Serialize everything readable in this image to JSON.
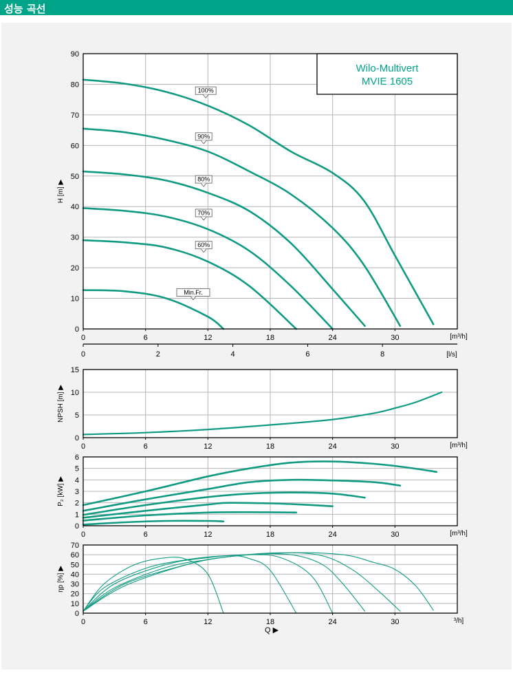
{
  "header": {
    "title": "성능 곡선"
  },
  "colors": {
    "accent": "#00a489",
    "curve": "#109a82",
    "panel_bg": "#f2f2f2",
    "plot_bg": "#ffffff",
    "grid": "#b5b5b5"
  },
  "legend_box": {
    "line1": "Wilo-Multivert",
    "line2": "MVIE 1605"
  },
  "chart_data": [
    {
      "id": "head",
      "type": "line",
      "ylabel": "H [m] ▶",
      "x_unit_label": "[m³/h]",
      "secondary_x_unit_label": "[l/s]",
      "xlim": [
        0,
        36
      ],
      "ylim": [
        0,
        90
      ],
      "x_ticks": [
        0,
        6,
        12,
        18,
        24,
        30
      ],
      "y_ticks": [
        0,
        10,
        20,
        30,
        40,
        50,
        60,
        70,
        80,
        90
      ],
      "secondary_x_ticks": [
        0,
        2,
        4,
        6,
        8
      ],
      "grid": true,
      "series": [
        {
          "name": "100%",
          "label_at": [
            10.8,
            76.0
          ],
          "points": [
            [
              0,
              81.5
            ],
            [
              4,
              80.2
            ],
            [
              8,
              77.5
            ],
            [
              12,
              73
            ],
            [
              16,
              66.5
            ],
            [
              20,
              58
            ],
            [
              24,
              51
            ],
            [
              27,
              42
            ],
            [
              30,
              24
            ],
            [
              33.7,
              1.5
            ]
          ]
        },
        {
          "name": "90%",
          "label_at": [
            10.8,
            61.0
          ],
          "points": [
            [
              0,
              65.5
            ],
            [
              4,
              64.3
            ],
            [
              8,
              61.8
            ],
            [
              12,
              58
            ],
            [
              16,
              51.5
            ],
            [
              20,
              44
            ],
            [
              24,
              33
            ],
            [
              27,
              21
            ],
            [
              30.5,
              1
            ]
          ]
        },
        {
          "name": "80%",
          "label_at": [
            10.8,
            47.0
          ],
          "points": [
            [
              0,
              51.5
            ],
            [
              4,
              50.5
            ],
            [
              8,
              48.5
            ],
            [
              12,
              44.5
            ],
            [
              16,
              38.5
            ],
            [
              20,
              28
            ],
            [
              24,
              13
            ],
            [
              27.1,
              1
            ]
          ]
        },
        {
          "name": "70%",
          "label_at": [
            10.8,
            36.0
          ],
          "points": [
            [
              0,
              39.5
            ],
            [
              4,
              38.6
            ],
            [
              8,
              36.7
            ],
            [
              12,
              32.6
            ],
            [
              16,
              25.5
            ],
            [
              20,
              14
            ],
            [
              24,
              0
            ]
          ]
        },
        {
          "name": "60%",
          "label_at": [
            10.8,
            25.5
          ],
          "points": [
            [
              0,
              29
            ],
            [
              4,
              28.3
            ],
            [
              8,
              26.6
            ],
            [
              12,
              22
            ],
            [
              16,
              14
            ],
            [
              20.5,
              0
            ]
          ]
        },
        {
          "name": "Min.Fr.",
          "label_at": [
            9.0,
            10.0
          ],
          "points": [
            [
              0,
              12.7
            ],
            [
              4,
              12.3
            ],
            [
              8,
              10
            ],
            [
              12,
              4
            ],
            [
              13.5,
              0
            ]
          ]
        }
      ]
    },
    {
      "id": "npsh",
      "type": "line",
      "ylabel": "NPSH [m] ▶",
      "x_unit_label": "[m³/h]",
      "xlim": [
        0,
        36
      ],
      "ylim": [
        0,
        15
      ],
      "x_ticks": [
        0,
        6,
        12,
        18,
        24,
        30
      ],
      "y_ticks": [
        0,
        5,
        10,
        15
      ],
      "grid": true,
      "series": [
        {
          "points": [
            [
              0,
              0.7
            ],
            [
              6,
              1.1
            ],
            [
              12,
              1.8
            ],
            [
              18,
              2.8
            ],
            [
              24,
              4.0
            ],
            [
              28,
              5.4
            ],
            [
              30,
              6.5
            ],
            [
              32,
              7.8
            ],
            [
              34.5,
              10.0
            ]
          ]
        }
      ]
    },
    {
      "id": "power",
      "type": "line",
      "ylabel": "P₂ [kW] ▶",
      "x_unit_label": "[m³/h]",
      "xlim": [
        0,
        36
      ],
      "ylim": [
        0,
        6
      ],
      "x_ticks": [
        0,
        6,
        12,
        18,
        24,
        30
      ],
      "y_ticks": [
        0,
        1,
        2,
        3,
        4,
        5,
        6
      ],
      "grid": true,
      "series": [
        {
          "name": "100%",
          "points": [
            [
              0,
              1.8
            ],
            [
              6,
              3.0
            ],
            [
              12,
              4.3
            ],
            [
              16,
              5.0
            ],
            [
              20,
              5.5
            ],
            [
              24,
              5.6
            ],
            [
              28,
              5.4
            ],
            [
              31,
              5.1
            ],
            [
              34,
              4.7
            ]
          ]
        },
        {
          "name": "90%",
          "points": [
            [
              0,
              1.3
            ],
            [
              6,
              2.3
            ],
            [
              12,
              3.2
            ],
            [
              16,
              3.8
            ],
            [
              20,
              4.0
            ],
            [
              24,
              3.95
            ],
            [
              28,
              3.8
            ],
            [
              30.5,
              3.5
            ]
          ]
        },
        {
          "name": "80%",
          "points": [
            [
              0,
              0.95
            ],
            [
              6,
              1.8
            ],
            [
              12,
              2.5
            ],
            [
              16,
              2.8
            ],
            [
              20,
              2.9
            ],
            [
              24,
              2.8
            ],
            [
              27.1,
              2.45
            ]
          ]
        },
        {
          "name": "70%",
          "points": [
            [
              0,
              0.7
            ],
            [
              6,
              1.3
            ],
            [
              12,
              1.85
            ],
            [
              14,
              2.0
            ],
            [
              18,
              1.95
            ],
            [
              21,
              1.85
            ],
            [
              24,
              1.7
            ]
          ]
        },
        {
          "name": "60%",
          "points": [
            [
              0,
              0.45
            ],
            [
              6,
              0.9
            ],
            [
              12,
              1.15
            ],
            [
              16,
              1.18
            ],
            [
              20.5,
              1.15
            ]
          ]
        },
        {
          "name": "Min.Fr.",
          "points": [
            [
              0,
              0.1
            ],
            [
              4,
              0.3
            ],
            [
              8,
              0.42
            ],
            [
              12,
              0.42
            ],
            [
              13.5,
              0.38
            ]
          ]
        }
      ]
    },
    {
      "id": "efficiency",
      "type": "line",
      "ylabel": "ηp [%] ▶",
      "x_unit_label": "³/h]",
      "xlabel": "Q ▶",
      "xlim": [
        0,
        36
      ],
      "ylim": [
        0,
        70
      ],
      "x_ticks": [
        0,
        6,
        12,
        18,
        24,
        30
      ],
      "y_ticks": [
        0,
        10,
        20,
        30,
        40,
        50,
        60,
        70
      ],
      "grid": true,
      "series": [
        {
          "name": "Min.Fr.",
          "points": [
            [
              0,
              2
            ],
            [
              2,
              30
            ],
            [
              5,
              50
            ],
            [
              8,
              57
            ],
            [
              10,
              55
            ],
            [
              12,
              40
            ],
            [
              13.5,
              0
            ]
          ]
        },
        {
          "name": "60%",
          "points": [
            [
              0,
              2
            ],
            [
              2,
              26
            ],
            [
              6,
              46
            ],
            [
              10,
              55
            ],
            [
              14,
              59
            ],
            [
              16,
              56
            ],
            [
              18,
              44
            ],
            [
              20.5,
              0
            ]
          ]
        },
        {
          "name": "70%",
          "points": [
            [
              0,
              2
            ],
            [
              3,
              30
            ],
            [
              8,
              50
            ],
            [
              12,
              57
            ],
            [
              16,
              60
            ],
            [
              19,
              57
            ],
            [
              22,
              38
            ],
            [
              24,
              0
            ]
          ]
        },
        {
          "name": "80%",
          "points": [
            [
              0,
              2
            ],
            [
              3,
              26
            ],
            [
              8,
              47
            ],
            [
              12,
              55
            ],
            [
              16,
              60
            ],
            [
              20,
              60
            ],
            [
              23,
              50
            ],
            [
              25,
              30
            ],
            [
              27.1,
              2
            ]
          ]
        },
        {
          "name": "90%",
          "points": [
            [
              0,
              2
            ],
            [
              4,
              30
            ],
            [
              10,
              50
            ],
            [
              14,
              58
            ],
            [
              19,
              62
            ],
            [
              23,
              59
            ],
            [
              26,
              44
            ],
            [
              28.5,
              22
            ],
            [
              30.5,
              2
            ]
          ]
        },
        {
          "name": "100%",
          "points": [
            [
              0,
              2
            ],
            [
              4,
              28
            ],
            [
              10,
              50
            ],
            [
              14,
              58
            ],
            [
              20,
              62
            ],
            [
              25,
              60
            ],
            [
              28,
              52
            ],
            [
              30,
              45
            ],
            [
              32,
              28
            ],
            [
              33.7,
              3
            ]
          ]
        }
      ]
    }
  ]
}
